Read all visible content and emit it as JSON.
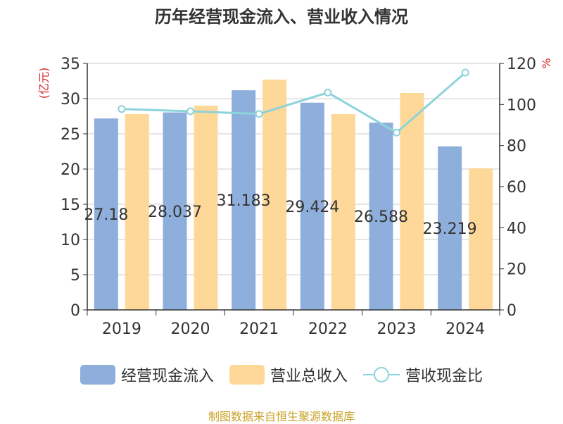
{
  "chart_data": {
    "type": "bar",
    "title": "历年经营现金流入、营业收入情况",
    "categories": [
      "2019",
      "2020",
      "2021",
      "2022",
      "2023",
      "2024"
    ],
    "series": [
      {
        "name": "经营现金流入",
        "kind": "bar",
        "axis": "left",
        "color": "#8eaedb",
        "values": [
          27.18,
          28.037,
          31.183,
          29.424,
          26.588,
          23.219
        ]
      },
      {
        "name": "营业总收入",
        "kind": "bar",
        "axis": "left",
        "color": "#fed898",
        "values": [
          27.8,
          29.0,
          32.7,
          27.8,
          30.8,
          20.1
        ]
      },
      {
        "name": "营收现金比",
        "kind": "line",
        "axis": "right",
        "color": "#8dd3da",
        "values": [
          97.8,
          96.7,
          95.4,
          105.8,
          86.3,
          115.5
        ]
      }
    ],
    "bar_labels": [
      "27.18",
      "28.037",
      "31.183",
      "29.424",
      "26.588",
      "23.219"
    ],
    "ylabel_left": "(亿元)",
    "ylabel_right": "%",
    "ylim_left": [
      0,
      35
    ],
    "ylim_right": [
      0,
      120
    ],
    "yticks_left": [
      "0",
      "5",
      "10",
      "15",
      "20",
      "25",
      "30",
      "35"
    ],
    "yticks_right": [
      "0",
      "20",
      "40",
      "60",
      "80",
      "100",
      "120"
    ],
    "grid": true,
    "legend_position": "bottom"
  },
  "source_text": "制图数据来自恒生聚源数据库"
}
